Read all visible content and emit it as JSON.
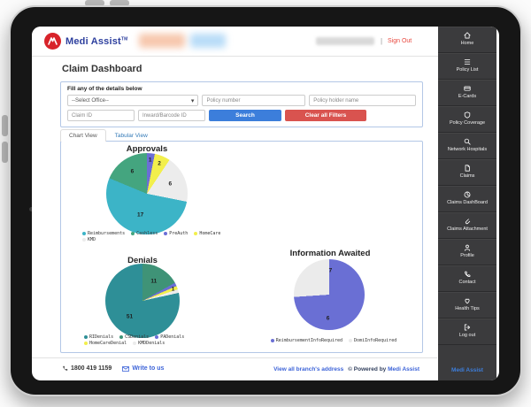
{
  "header": {
    "brand": "Medi Assist",
    "brand_tm": "TM",
    "divider": "|",
    "sign_out": "Sign Out"
  },
  "page": {
    "title": "Claim Dashboard"
  },
  "filters": {
    "heading": "Fill any of the details below",
    "office_selected": "--Select Office--",
    "policy_number_placeholder": "Policy number",
    "policy_holder_placeholder": "Policy holder name",
    "claim_id_placeholder": "Claim ID",
    "inward_placeholder": "Inward/Barcode ID",
    "search_label": "Search",
    "clear_label": "Clear all Filters"
  },
  "tabs": {
    "chart_view": "Chart View",
    "tabular_view": "Tabular View"
  },
  "chart_data": [
    {
      "type": "pie",
      "title": "Approvals",
      "slices": [
        {
          "label": "Reimbursements",
          "value": 17,
          "color": "#3cb4c7",
          "lr": 0.55
        },
        {
          "label": "Cashless",
          "value": 6,
          "color": "#44a57f",
          "lr": 0.65
        },
        {
          "label": "PreAuth",
          "value": 1,
          "color": "#6b6ed6",
          "lr": 0.82
        },
        {
          "label": "HomeCare",
          "value": 2,
          "color": "#f2ef4c",
          "lr": 0.8
        },
        {
          "label": "KMD",
          "value": 6,
          "color": "#ececec",
          "lr": 0.62
        }
      ],
      "draw_order": [
        2,
        3,
        4,
        0,
        1
      ],
      "start_deg": 0,
      "legend_position": "bottom"
    },
    {
      "type": "pie",
      "title": "Denials",
      "slices": [
        {
          "label": "RIDenials",
          "value": 51,
          "color": "#2e8f97",
          "lr": 0.55
        },
        {
          "label": "CSDenials",
          "value": 11,
          "color": "#3f9377",
          "lr": 0.6
        },
        {
          "label": "PADenials",
          "value": 1,
          "color": "#6b6ed6",
          "show_label": false
        },
        {
          "label": "HomeCareDenial",
          "value": 1,
          "color": "#f2ef4c",
          "lr": 0.88
        },
        {
          "label": "KMDDenials",
          "value": 1,
          "color": "#ececec",
          "show_label": false
        }
      ],
      "draw_order": [
        1,
        2,
        3,
        4,
        0
      ],
      "start_deg": 0,
      "legend_position": "bottom"
    },
    {
      "type": "pie",
      "title": "Information Awaited",
      "slices": [
        {
          "label": "ReimbursementInfoRequired",
          "value": 6,
          "color": "#6a6fd4",
          "lr": 0.68
        },
        {
          "label": "DomiInfoRequired",
          "value": 7,
          "color": "#ebebeb",
          "lr": 0.68
        }
      ],
      "draw_order": [
        0,
        1
      ],
      "start_deg": 100,
      "legend_position": "bottom"
    }
  ],
  "footer": {
    "phone": "1800 419 1159",
    "write_to_us": "Write to us",
    "branch_link": "View all branch's address",
    "powered_prefix": "© Powered by",
    "powered_brand": "Medi Assist"
  },
  "sidebar": {
    "items": [
      {
        "label": "Home",
        "icon": "home-icon"
      },
      {
        "label": "Policy List",
        "icon": "policy-list-icon"
      },
      {
        "label": "E-Cards",
        "icon": "ecards-icon"
      },
      {
        "label": "Policy Coverage",
        "icon": "policy-coverage-icon"
      },
      {
        "label": "Network Hospitals",
        "icon": "search-icon"
      },
      {
        "label": "Claims",
        "icon": "document-icon"
      },
      {
        "label": "Claims DashBoard",
        "icon": "dashboard-icon"
      },
      {
        "label": "Claims Attachment",
        "icon": "attachment-icon"
      },
      {
        "label": "Profile",
        "icon": "person-icon"
      },
      {
        "label": "Contact",
        "icon": "phone-icon"
      },
      {
        "label": "Health Tips",
        "icon": "heart-icon"
      },
      {
        "label": "Log out",
        "icon": "logout-icon"
      }
    ],
    "brand": "Medi Assist"
  },
  "colors": {
    "brand_blue": "#2d3f9e",
    "logo_red": "#d8232a",
    "signout_red": "#e8493f",
    "search_blue": "#3c7edb",
    "clear_red": "#d9534f",
    "panel_border": "#b3c7e6",
    "sidebar_bg": "#3b3b3d"
  }
}
